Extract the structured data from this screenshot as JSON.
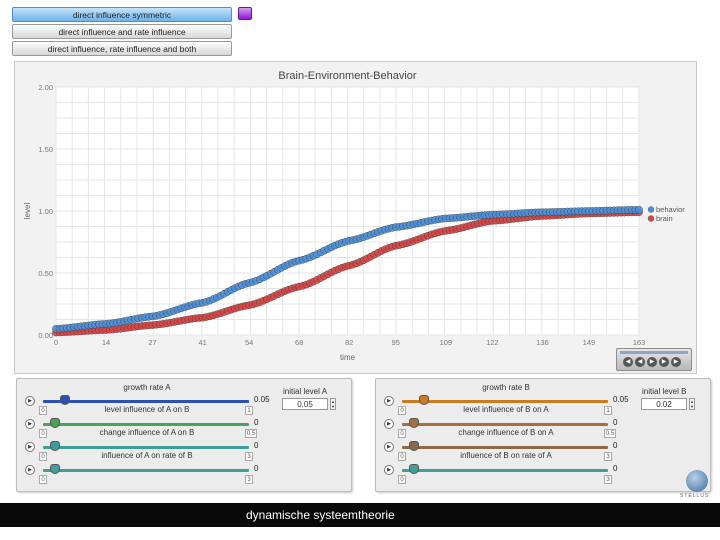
{
  "modes": [
    {
      "label": "direct influence symmetric",
      "active": true
    },
    {
      "label": "direct influence and rate influence",
      "active": false
    },
    {
      "label": "direct influence, rate influence and both",
      "active": false
    }
  ],
  "chart_data": {
    "type": "scatter",
    "title": "Brain-Environment-Behavior",
    "xlabel": "time",
    "ylabel": "level",
    "xlim": [
      0,
      163
    ],
    "ylim": [
      0,
      2
    ],
    "xticks": [
      "0",
      "14",
      "27",
      "41",
      "54",
      "68",
      "82",
      "95",
      "109",
      "122",
      "136",
      "149",
      "163"
    ],
    "yticks": [
      "0.00",
      "0.50",
      "1.00",
      "1.50",
      "2.00"
    ],
    "legend_position": "right",
    "series": [
      {
        "name": "behavior",
        "color": "#4d8fd6",
        "x": [
          0,
          14,
          27,
          41,
          54,
          68,
          82,
          95,
          109,
          122,
          136,
          149,
          163
        ],
        "y": [
          0.05,
          0.09,
          0.15,
          0.26,
          0.42,
          0.6,
          0.76,
          0.87,
          0.94,
          0.97,
          0.99,
          1.0,
          1.01
        ]
      },
      {
        "name": "brain",
        "color": "#d64545",
        "x": [
          0,
          14,
          27,
          41,
          54,
          68,
          82,
          95,
          109,
          122,
          136,
          149,
          163
        ],
        "y": [
          0.02,
          0.04,
          0.08,
          0.14,
          0.24,
          0.39,
          0.56,
          0.72,
          0.84,
          0.92,
          0.96,
          0.98,
          0.99
        ]
      }
    ]
  },
  "controls": {
    "left": {
      "growth_title": "growth rate A",
      "sliders": [
        {
          "label": "level influence of A on B",
          "value": "0.05",
          "min": "0",
          "max": "1",
          "fraction": 0.05,
          "color": "#2b4fb3"
        },
        {
          "label": "change influence of A on B",
          "value": "0",
          "min": "0",
          "max": "0.5",
          "fraction": 0,
          "color": "#4aa35a"
        },
        {
          "label": "influence of A on rate of B",
          "value": "0",
          "min": "0",
          "max": "3",
          "fraction": 0,
          "color": "#3f9e9a"
        },
        {
          "label": "",
          "value": "0",
          "min": "0",
          "max": "3",
          "fraction": 0,
          "color": "#3f9e9a"
        }
      ],
      "initial_label": "initial level A",
      "initial_value": "0.05"
    },
    "right": {
      "growth_title": "growth rate B",
      "sliders": [
        {
          "label": "level influence of B on A",
          "value": "0.05",
          "min": "0",
          "max": "1",
          "fraction": 0.05,
          "color": "#c97a22"
        },
        {
          "label": "change influence of B on A",
          "value": "0",
          "min": "0",
          "max": "0.5",
          "fraction": 0,
          "color": "#a3713f"
        },
        {
          "label": "influence of B on rate of A",
          "value": "0",
          "min": "0",
          "max": "3",
          "fraction": 0,
          "color": "#8a6a4a"
        },
        {
          "label": "",
          "value": "0",
          "min": "0",
          "max": "3",
          "fraction": 0,
          "color": "#3f9e9a"
        }
      ],
      "initial_label": "initial level B",
      "initial_value": "0.02"
    }
  },
  "logo_text": "STELLUS",
  "footer_text": "dynamische systeemtheorie"
}
